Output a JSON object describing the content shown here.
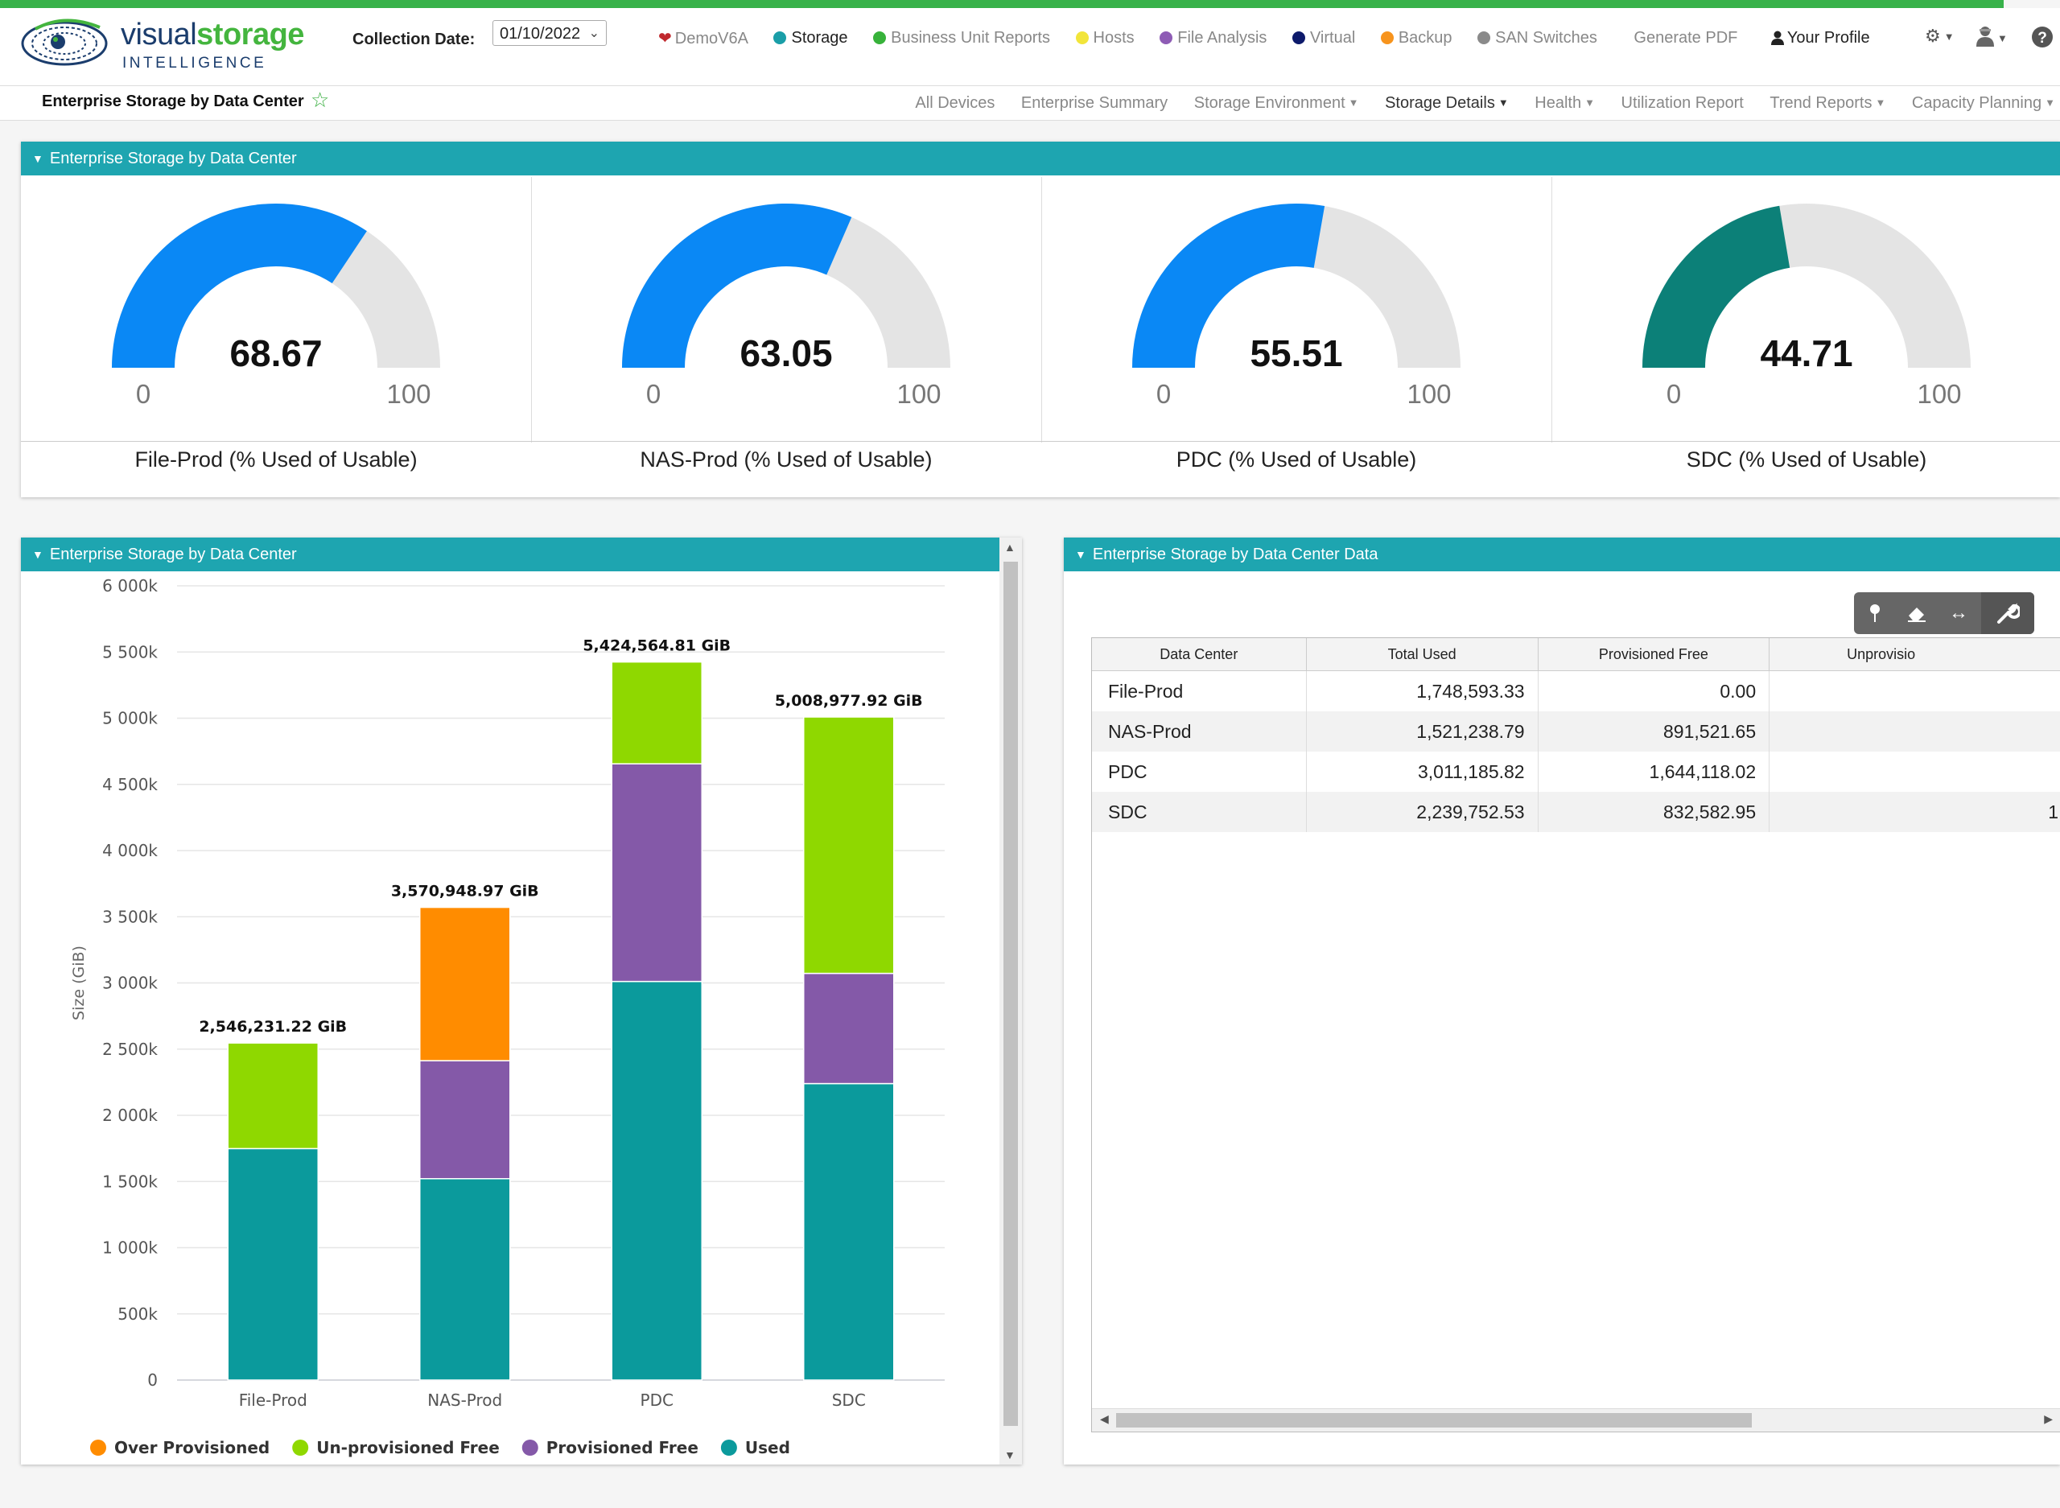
{
  "app": {
    "logo_word_1": "visual",
    "logo_word_2": "storage",
    "logo_sub": "INTELLIGENCE"
  },
  "collection_date": {
    "label": "Collection Date:",
    "value": "01/10/2022"
  },
  "topnav": [
    {
      "label": "DemoV6A",
      "icon": "heart-icon",
      "color": "#c0282d"
    },
    {
      "label": "Storage",
      "icon": "dot",
      "color": "#1a9ea8"
    },
    {
      "label": "Business Unit Reports",
      "icon": "dot",
      "color": "#37b23a"
    },
    {
      "label": "Hosts",
      "icon": "dot",
      "color": "#f2e53a"
    },
    {
      "label": "File Analysis",
      "icon": "dot",
      "color": "#8e5cb5"
    },
    {
      "label": "Virtual",
      "icon": "dot",
      "color": "#0d1a6b"
    },
    {
      "label": "Backup",
      "icon": "dot",
      "color": "#f7941d"
    },
    {
      "label": "SAN Switches",
      "icon": "dot",
      "color": "#8a8a8a"
    },
    {
      "label": "Generate PDF"
    },
    {
      "label": "Your Profile",
      "icon": "user-icon"
    }
  ],
  "page": {
    "title": "Enterprise Storage by Data Center"
  },
  "subnav": [
    {
      "label": "All Devices"
    },
    {
      "label": "Enterprise Summary"
    },
    {
      "label": "Storage Environment",
      "dropdown": true
    },
    {
      "label": "Storage Details",
      "dropdown": true,
      "active": true
    },
    {
      "label": "Health",
      "dropdown": true
    },
    {
      "label": "Utilization Report"
    },
    {
      "label": "Trend Reports",
      "dropdown": true
    },
    {
      "label": "Capacity Planning",
      "dropdown": true
    }
  ],
  "gauges_panel": {
    "title": "Enterprise Storage by Data Center",
    "min_label": "0",
    "max_label": "100",
    "gauges": [
      {
        "value": 68.67,
        "label": "68.67",
        "title": "File-Prod (% Used of Usable)",
        "color": "#0a88f5"
      },
      {
        "value": 63.05,
        "label": "63.05",
        "title": "NAS-Prod (% Used of Usable)",
        "color": "#0a88f5"
      },
      {
        "value": 55.51,
        "label": "55.51",
        "title": "PDC (% Used of Usable)",
        "color": "#0a88f5"
      },
      {
        "value": 44.71,
        "label": "44.71",
        "title": "SDC (% Used of Usable)",
        "color": "#0c8078"
      }
    ]
  },
  "chart_panel": {
    "title": "Enterprise Storage by Data Center"
  },
  "chart_data": {
    "type": "bar",
    "stacked": true,
    "categories": [
      "File-Prod",
      "NAS-Prod",
      "PDC",
      "SDC"
    ],
    "series": [
      {
        "name": "Used",
        "values": [
          1748593,
          1521239,
          3011186,
          2239753
        ],
        "color": "#0b9a9c"
      },
      {
        "name": "Provisioned Free",
        "values": [
          0,
          891522,
          1644118,
          832583
        ],
        "color": "#8459a8"
      },
      {
        "name": "Un-provisioned Free",
        "values": [
          797638,
          0,
          769261,
          1936642
        ],
        "color": "#8fd800"
      },
      {
        "name": "Over Provisioned",
        "values": [
          0,
          1158188,
          0,
          0
        ],
        "color": "#ff8c00"
      }
    ],
    "totals": [
      "2,546,231.22 GiB",
      "3,570,948.97 GiB",
      "5,424,564.81 GiB",
      "5,008,977.92 GiB"
    ],
    "ylabel": "Size (GiB)",
    "ylim": [
      0,
      6000000
    ],
    "yticks": [
      "0",
      "500k",
      "1 000k",
      "1 500k",
      "2 000k",
      "2 500k",
      "3 000k",
      "3 500k",
      "4 000k",
      "4 500k",
      "5 000k",
      "5 500k",
      "6 000k"
    ],
    "grid": true,
    "legend_order": [
      "Over Provisioned",
      "Un-provisioned Free",
      "Provisioned Free",
      "Used"
    ],
    "legend_position": "bottom"
  },
  "data_panel": {
    "title": "Enterprise Storage by Data Center Data",
    "columns": [
      "Data Center",
      "Total Used",
      "Provisioned Free",
      "Unprovisio"
    ],
    "rows": [
      [
        "File-Prod",
        "1,748,593.33",
        "0.00",
        ""
      ],
      [
        "NAS-Prod",
        "1,521,238.79",
        "891,521.65",
        ""
      ],
      [
        "PDC",
        "3,011,185.82",
        "1,644,118.02",
        ""
      ],
      [
        "SDC",
        "2,239,752.53",
        "832,582.95",
        "1"
      ]
    ]
  }
}
